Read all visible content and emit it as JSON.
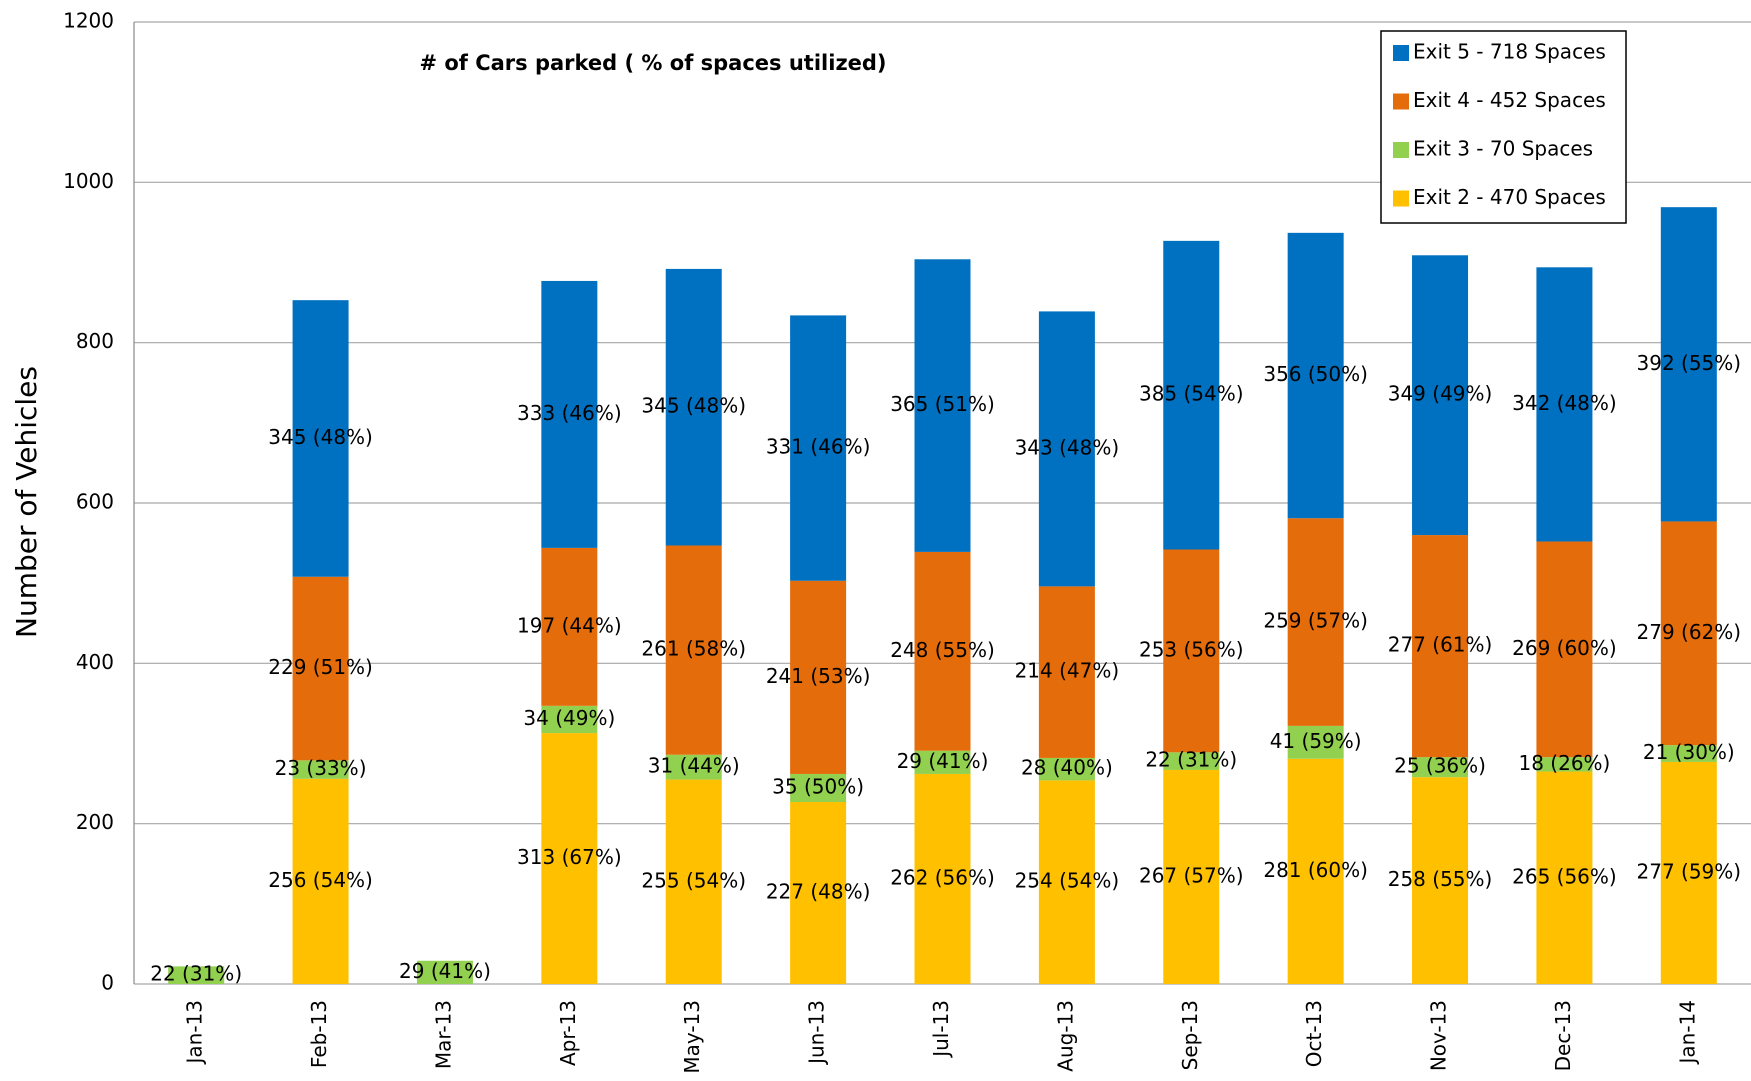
{
  "chart_data": {
    "type": "stacked_bar",
    "title": "# of Cars parked ( % of spaces utilized)",
    "y_label": "Number of Vehicles",
    "categories": [
      "Jan-13",
      "Feb-13",
      "Mar-13",
      "Apr-13",
      "May-13",
      "Jun-13",
      "Jul-13",
      "Aug-13",
      "Sep-13",
      "Oct-13",
      "Nov-13",
      "Dec-13",
      "Jan-14"
    ],
    "series": [
      {
        "name": "Exit 2 - 470 Spaces",
        "color": "#ffc000",
        "values": [
          null,
          256,
          null,
          313,
          255,
          227,
          262,
          254,
          267,
          281,
          258,
          265,
          277
        ],
        "value_labels": [
          null,
          "256 (54%)",
          null,
          "313 (67%)",
          "255 (54%)",
          "227 (48%)",
          "262 (56%)",
          "254 (54%)",
          "267 (57%)",
          "281 (60%)",
          "258 (55%)",
          "265 (56%)",
          "277 (59%)"
        ]
      },
      {
        "name": "Exit 3 - 70 Spaces",
        "color": "#92d050",
        "values": [
          22,
          23,
          29,
          34,
          31,
          35,
          29,
          28,
          22,
          41,
          25,
          18,
          21
        ],
        "value_labels": [
          "22 (31%)",
          "23 (33%)",
          "29 (41%)",
          "34 (49%)",
          "31 (44%)",
          "35 (50%)",
          "29 (41%)",
          "28 (40%)",
          "22 (31%)",
          "41 (59%)",
          "25 (36%)",
          "18 (26%)",
          "21 (30%)"
        ]
      },
      {
        "name": "Exit 4 - 452 Spaces",
        "color": "#e46c0a",
        "values": [
          null,
          229,
          null,
          197,
          261,
          241,
          248,
          214,
          253,
          259,
          277,
          269,
          279
        ],
        "value_labels": [
          null,
          "229 (51%)",
          null,
          "197 (44%)",
          "261 (58%)",
          "241 (53%)",
          "248 (55%)",
          "214 (47%)",
          "253 (56%)",
          "259 (57%)",
          "277 (61%)",
          "269 (60%)",
          "279 (62%)"
        ]
      },
      {
        "name": "Exit 5 - 718 Spaces",
        "color": "#0070c0",
        "values": [
          null,
          345,
          null,
          333,
          345,
          331,
          365,
          343,
          385,
          356,
          349,
          342,
          392
        ],
        "value_labels": [
          null,
          "345 (48%)",
          null,
          "333 (46%)",
          "345 (48%)",
          "331 (46%)",
          "365 (51%)",
          "343 (48%)",
          "385 (54%)",
          "356 (50%)",
          "349 (49%)",
          "342 (48%)",
          "392 (55%)"
        ]
      }
    ],
    "ylim": [
      0,
      1200
    ],
    "yticks": [
      0,
      200,
      400,
      600,
      800,
      1000,
      1200
    ],
    "grid": true,
    "legend": "top-right"
  }
}
